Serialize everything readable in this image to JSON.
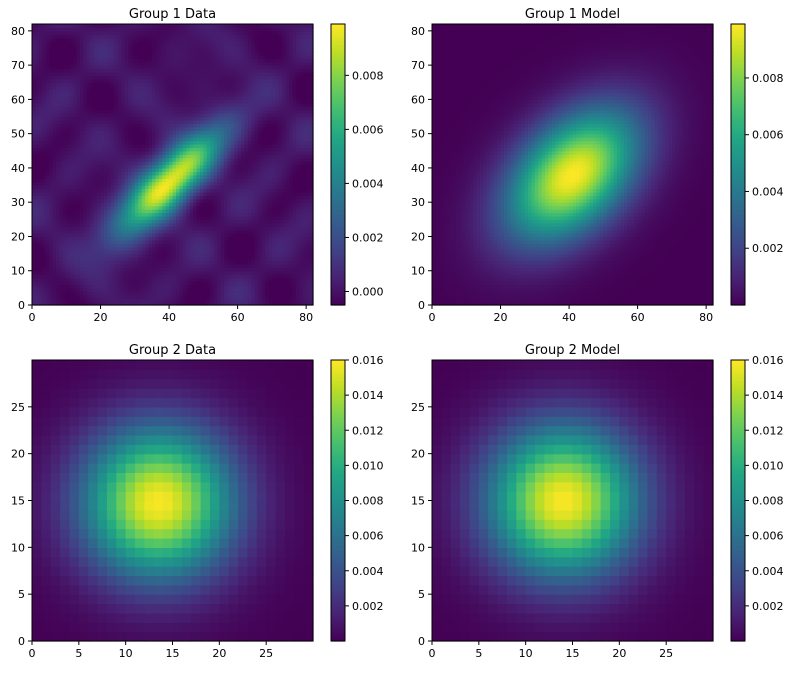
{
  "chart_data": [
    {
      "type": "heatmap",
      "title": "Group 1 Data",
      "colormap": "viridis",
      "grid_size": [
        82,
        82
      ],
      "xlim": [
        0,
        82
      ],
      "ylim": [
        0,
        82
      ],
      "xticks": [
        0,
        20,
        40,
        60,
        80
      ],
      "yticks": [
        0,
        10,
        20,
        30,
        40,
        50,
        60,
        70,
        80
      ],
      "colorbar_range": [
        -0.0005,
        0.0099
      ],
      "colorbar_ticks": [
        "0.000",
        "0.002",
        "0.004",
        "0.006",
        "0.008"
      ],
      "blob": {
        "center_x": 40,
        "center_y": 36,
        "sigma_major": 14,
        "sigma_minor": 4.5,
        "angle_deg": 45,
        "peak": 0.0099
      },
      "grid": false
    },
    {
      "type": "heatmap",
      "title": "Group 1 Model",
      "colormap": "viridis",
      "grid_size": [
        82,
        82
      ],
      "xlim": [
        0,
        82
      ],
      "ylim": [
        0,
        82
      ],
      "xticks": [
        0,
        20,
        40,
        60,
        80
      ],
      "yticks": [
        0,
        10,
        20,
        30,
        40,
        50,
        60,
        70,
        80
      ],
      "colorbar_range": [
        0.0,
        0.0099
      ],
      "colorbar_ticks": [
        "0.002",
        "0.004",
        "0.006",
        "0.008"
      ],
      "blob": {
        "center_x": 41,
        "center_y": 38,
        "sigma_major": 16,
        "sigma_minor": 10,
        "angle_deg": 45,
        "peak": 0.0099
      },
      "grid": false
    },
    {
      "type": "heatmap",
      "title": "Group 2 Data",
      "colormap": "viridis",
      "grid_size": [
        30,
        30
      ],
      "xlim": [
        0,
        30
      ],
      "ylim": [
        0,
        30
      ],
      "xticks": [
        0,
        5,
        10,
        15,
        20,
        25
      ],
      "yticks": [
        0,
        5,
        10,
        15,
        20,
        25
      ],
      "colorbar_range": [
        0.0,
        0.016
      ],
      "colorbar_ticks": [
        "0.002",
        "0.004",
        "0.006",
        "0.008",
        "0.010",
        "0.012",
        "0.014",
        "0.016"
      ],
      "blob": {
        "center_x": 13.5,
        "center_y": 14.8,
        "sigma_major": 5.6,
        "sigma_minor": 5.6,
        "angle_deg": 0,
        "peak": 0.0159
      },
      "grid": false
    },
    {
      "type": "heatmap",
      "title": "Group 2 Model",
      "colormap": "viridis",
      "grid_size": [
        30,
        30
      ],
      "xlim": [
        0,
        30
      ],
      "ylim": [
        0,
        30
      ],
      "xticks": [
        0,
        5,
        10,
        15,
        20,
        25
      ],
      "yticks": [
        0,
        5,
        10,
        15,
        20,
        25
      ],
      "colorbar_range": [
        0.0,
        0.016
      ],
      "colorbar_ticks": [
        "0.002",
        "0.004",
        "0.006",
        "0.008",
        "0.010",
        "0.012",
        "0.014",
        "0.016"
      ],
      "blob": {
        "center_x": 14,
        "center_y": 15,
        "sigma_major": 5.6,
        "sigma_minor": 5.6,
        "angle_deg": 0,
        "peak": 0.0159
      },
      "grid": false
    }
  ]
}
